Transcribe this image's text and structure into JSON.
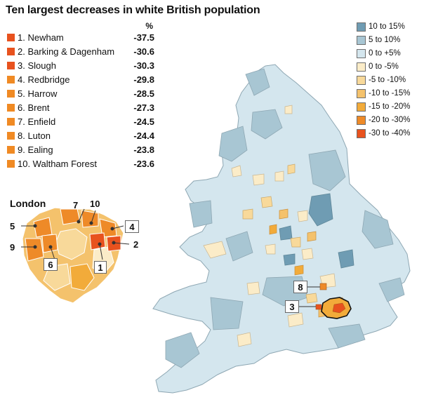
{
  "title": "Ten largest decreases in white British population",
  "percent_header": "%",
  "rankings": [
    {
      "label": "1. Newham",
      "value": "-37.5",
      "color": "#e8521e"
    },
    {
      "label": "2. Barking & Dagenham",
      "value": "-30.6",
      "color": "#e8521e"
    },
    {
      "label": "3. Slough",
      "value": "-30.3",
      "color": "#e8521e"
    },
    {
      "label": "4. Redbridge",
      "value": "-29.8",
      "color": "#f08a24"
    },
    {
      "label": "5. Harrow",
      "value": "-28.5",
      "color": "#f08a24"
    },
    {
      "label": "6. Brent",
      "value": "-27.3",
      "color": "#f08a24"
    },
    {
      "label": "7. Enfield",
      "value": "-24.5",
      "color": "#f08a24"
    },
    {
      "label": "8. Luton",
      "value": "-24.4",
      "color": "#f08a24"
    },
    {
      "label": "9. Ealing",
      "value": "-23.8",
      "color": "#f08a24"
    },
    {
      "label": "10. Waltham Forest",
      "value": "-23.6",
      "color": "#f08a24"
    }
  ],
  "legend": [
    {
      "label": "10 to 15%",
      "color": "#6f9cb3"
    },
    {
      "label": "5 to 10%",
      "color": "#a8c6d3"
    },
    {
      "label": "0 to +5%",
      "color": "#d4e6ee"
    },
    {
      "label": "0 to -5%",
      "color": "#fbecc8"
    },
    {
      "label": "-5 to -10%",
      "color": "#f8d99a"
    },
    {
      "label": "-10 to -15%",
      "color": "#f4c26c"
    },
    {
      "label": "-15 to -20%",
      "color": "#f2ab3a"
    },
    {
      "label": "-20 to -30%",
      "color": "#ee8a28"
    },
    {
      "label": "-30 to -40%",
      "color": "#e8521e"
    }
  ],
  "inset": {
    "title": "London",
    "numbers": {
      "n1": "1",
      "n2": "2",
      "n4": "4",
      "n5": "5",
      "n6": "6",
      "n7": "7",
      "n9": "9",
      "n10": "10"
    }
  },
  "map_callouts": {
    "slough": "3",
    "luton": "8"
  }
}
